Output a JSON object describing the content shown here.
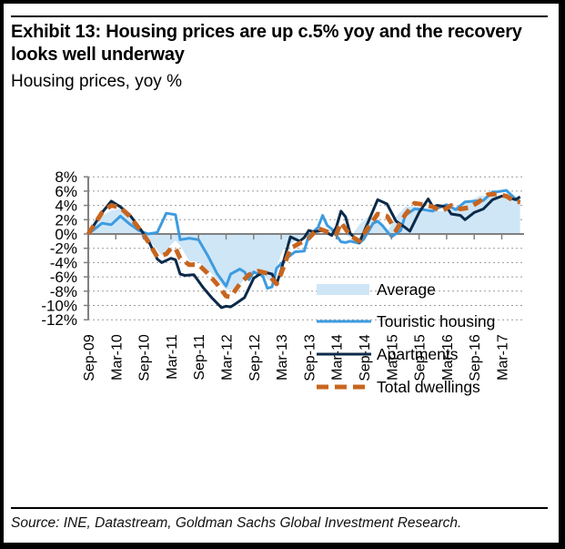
{
  "header": {
    "title": "Exhibit 13: Housing prices are up c.5% yoy and the recovery looks well underway",
    "subtitle": "Housing prices, yoy %"
  },
  "footer": {
    "source": "Source: INE, Datastream, Goldman Sachs Global Investment Research."
  },
  "colors": {
    "average": "#cfe6f7",
    "touristic": "#3d9be0",
    "apartments": "#0b2a4a",
    "total": "#c8651e",
    "grid": "#9a9a9a",
    "axis": "#808080"
  },
  "chart_data": {
    "type": "line",
    "title": "Housing prices, yoy %",
    "xlabel": "",
    "ylabel": "",
    "ylim": [
      -12,
      8
    ],
    "yticks": [
      8,
      6,
      4,
      2,
      0,
      -2,
      -4,
      -6,
      -8,
      -10,
      -12
    ],
    "ytick_labels": [
      "8%",
      "6%",
      "4%",
      "2%",
      "0%",
      "-2%",
      "-4%",
      "-6%",
      "-8%",
      "-10%",
      "-12%"
    ],
    "x_unit": "months since Sep-09",
    "xlim": [
      0,
      94
    ],
    "xtick_labels": [
      "Sep-09",
      "Mar-10",
      "Sep-10",
      "Mar-11",
      "Sep-11",
      "Mar-12",
      "Sep-12",
      "Mar-13",
      "Sep-13",
      "Mar-14",
      "Sep-14",
      "Mar-15",
      "Sep-15",
      "Mar-16",
      "Sep-16",
      "Mar-17"
    ],
    "grid": true,
    "legend_position": "bottom-right",
    "series": [
      {
        "name": "Average",
        "style": "area",
        "x": [
          0,
          3,
          5,
          7,
          9,
          12,
          14,
          16,
          18,
          19,
          20,
          22,
          24,
          27,
          30,
          32,
          34,
          36,
          38,
          40,
          42,
          43,
          45,
          47,
          49,
          51,
          53,
          55,
          57,
          59,
          61,
          63,
          65,
          67,
          69,
          71,
          73,
          75,
          77,
          79,
          81,
          83,
          85,
          87,
          89,
          91,
          93,
          94
        ],
        "values": [
          0,
          2.5,
          3.3,
          3.5,
          2.2,
          0.2,
          -1.5,
          -3.0,
          -1.5,
          -0.9,
          -1.6,
          -3.8,
          -3.9,
          -5.6,
          -7.8,
          -7.8,
          -6.4,
          -5.2,
          -5.8,
          -6.8,
          -2.8,
          -1.6,
          -1.0,
          -0.2,
          0.1,
          0.0,
          0.8,
          0.3,
          -0.5,
          1.3,
          2.5,
          1.6,
          0.3,
          2.4,
          3.8,
          3.9,
          3.6,
          3.3,
          3.2,
          3.5,
          4.2,
          4.5,
          5.3,
          5.4,
          5.3,
          5.1,
          4.6,
          4.5
        ]
      },
      {
        "name": "Touristic housing",
        "style": "solid",
        "x": [
          0,
          3,
          5,
          7,
          9,
          11,
          13,
          15,
          17,
          19,
          20,
          22,
          24,
          26,
          28,
          30,
          31,
          33,
          34,
          35,
          36,
          38,
          39,
          40,
          41,
          43,
          45,
          47,
          48,
          50,
          51,
          52,
          53,
          55,
          56,
          57,
          59,
          60,
          62,
          63,
          64,
          66,
          68,
          69,
          71,
          73,
          75,
          76,
          78,
          80,
          82,
          84,
          86,
          88,
          89,
          91,
          93,
          94
        ],
        "values": [
          0,
          1.5,
          1.3,
          2.5,
          1.4,
          0.5,
          0.0,
          0.2,
          2.9,
          2.7,
          -0.8,
          -0.6,
          -0.8,
          -3.0,
          -5.5,
          -7.3,
          -5.6,
          -4.9,
          -5.3,
          -6.4,
          -5.3,
          -5.9,
          -7.6,
          -7.4,
          -4.8,
          -3.5,
          -2.5,
          -2.4,
          -0.2,
          0.9,
          2.6,
          1.2,
          0.7,
          -1.1,
          -1.2,
          -1.0,
          -1.3,
          -0.7,
          1.5,
          1.8,
          1.2,
          -0.4,
          0.5,
          2.6,
          3.5,
          3.4,
          3.2,
          3.6,
          4.1,
          3.4,
          4.5,
          4.6,
          4.7,
          5.9,
          5.9,
          6.1,
          4.9,
          4.5
        ]
      },
      {
        "name": "Apartments",
        "style": "solid",
        "x": [
          0,
          3,
          5,
          7,
          9,
          11,
          13,
          15,
          16,
          18,
          19,
          20,
          21,
          23,
          25,
          27,
          29,
          30,
          31,
          32,
          34,
          36,
          38,
          40,
          41,
          42,
          44,
          46,
          47,
          48,
          49,
          51,
          53,
          54,
          55,
          56,
          57,
          59,
          61,
          63,
          65,
          67,
          69,
          70,
          72,
          74,
          75,
          76,
          78,
          79,
          81,
          82,
          84,
          86,
          88,
          90,
          91,
          93,
          94
        ],
        "values": [
          0,
          3.0,
          4.6,
          3.8,
          2.7,
          1.0,
          -0.8,
          -3.5,
          -4.0,
          -3.4,
          -3.6,
          -5.6,
          -5.8,
          -5.7,
          -7.5,
          -9.0,
          -10.3,
          -10.1,
          -10.2,
          -9.8,
          -8.9,
          -6.2,
          -5.3,
          -5.6,
          -7.0,
          -5.0,
          -0.4,
          -1.0,
          -0.5,
          0.5,
          0.3,
          0.5,
          -0.2,
          1.0,
          3.2,
          2.4,
          0.1,
          -1.2,
          1.8,
          4.8,
          4.2,
          1.8,
          0.9,
          0.4,
          3.0,
          4.9,
          3.8,
          4.0,
          3.8,
          2.8,
          2.6,
          2.0,
          3.0,
          3.5,
          4.8,
          5.3,
          5.2,
          4.8,
          5.2
        ]
      },
      {
        "name": "Total dwellings",
        "style": "dashed",
        "x": [
          0,
          3,
          5,
          7,
          9,
          11,
          13,
          15,
          17,
          18,
          19,
          20,
          22,
          24,
          26,
          28,
          30,
          31,
          33,
          35,
          37,
          39,
          41,
          42,
          44,
          46,
          48,
          50,
          52,
          54,
          55,
          57,
          59,
          61,
          63,
          65,
          67,
          69,
          71,
          73,
          75,
          77,
          79,
          81,
          83,
          85,
          87,
          89,
          91,
          93,
          94
        ],
        "values": [
          0,
          3.0,
          4.0,
          3.7,
          2.5,
          0.8,
          -1.0,
          -3.2,
          -2.8,
          -2.0,
          -2.0,
          -3.4,
          -4.3,
          -4.3,
          -5.5,
          -7.0,
          -8.7,
          -8.8,
          -7.0,
          -5.7,
          -5.2,
          -5.5,
          -7.0,
          -5.5,
          -2.0,
          -1.3,
          -0.6,
          0.8,
          0.3,
          0.0,
          1.6,
          -0.2,
          -1.0,
          1.0,
          2.8,
          2.5,
          0.5,
          2.7,
          4.3,
          4.1,
          3.8,
          3.2,
          4.0,
          3.5,
          3.7,
          4.5,
          5.5,
          5.6,
          5.3,
          4.5,
          4.5
        ]
      }
    ],
    "legend": [
      "Average",
      "Touristic housing",
      "Apartments",
      "Total dwellings"
    ]
  }
}
